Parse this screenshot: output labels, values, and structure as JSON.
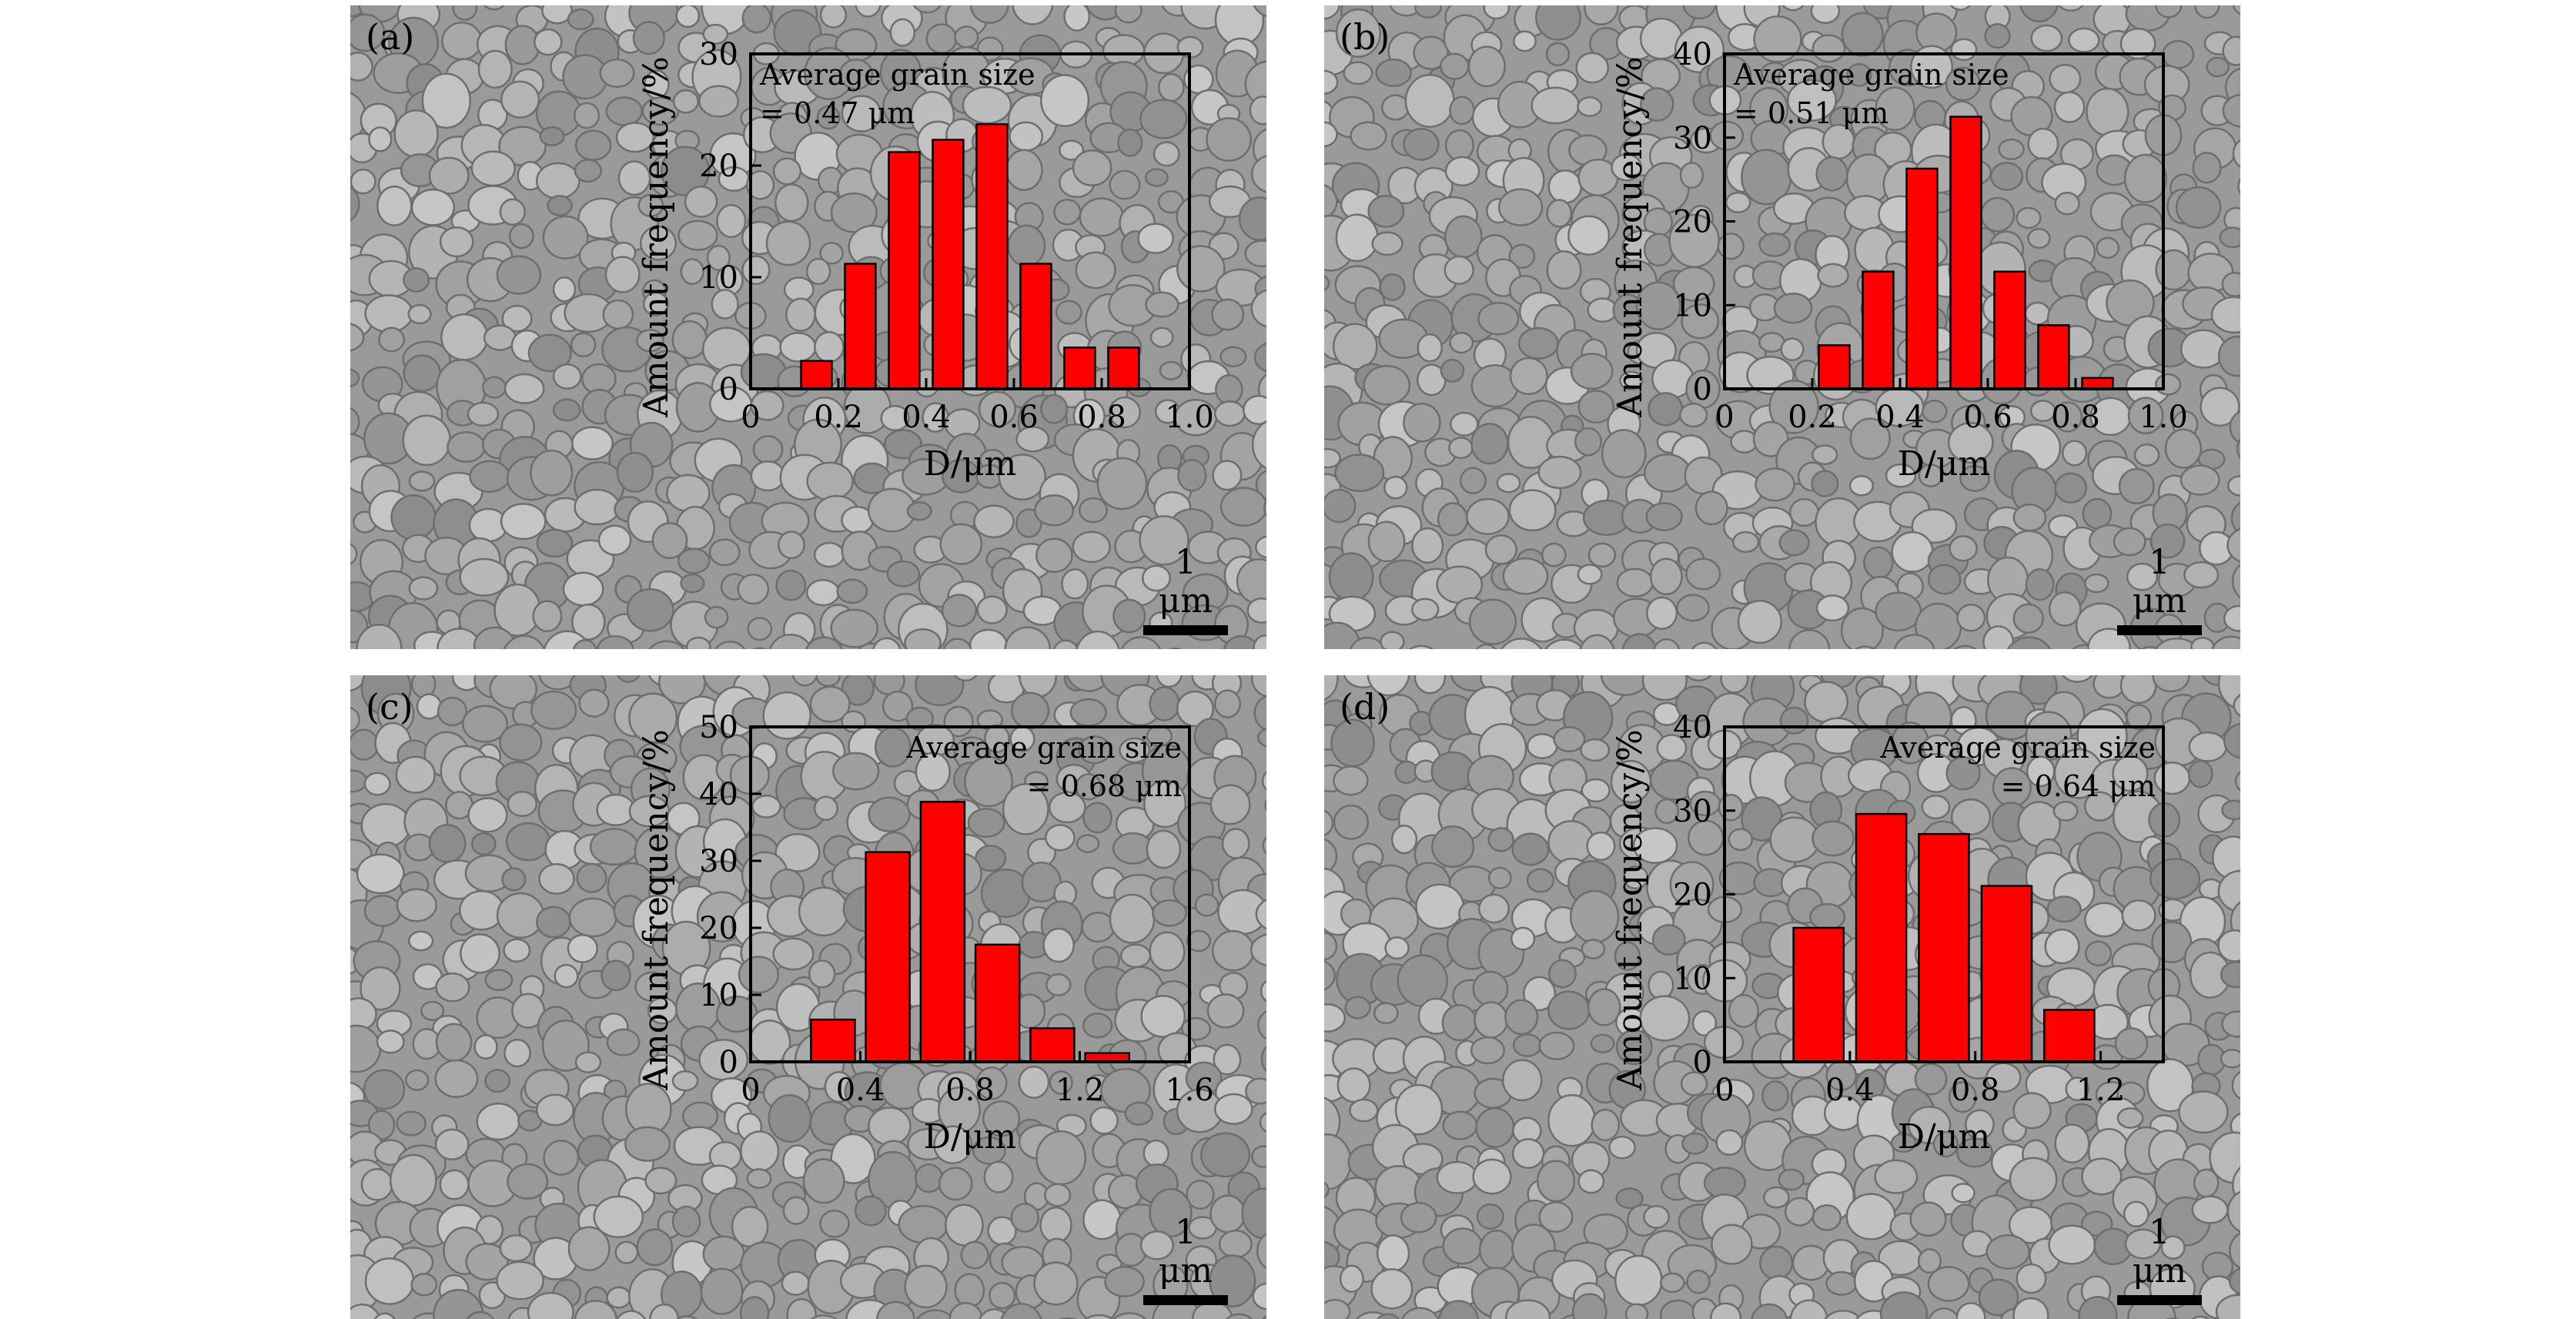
{
  "colors": {
    "bar_fill": "#ff0000",
    "bar_stroke": "#000000",
    "axis": "#000000",
    "micrograph": "#9a9a9a"
  },
  "panels": [
    {
      "tag": "(a)",
      "scale_label": "1 μm"
    },
    {
      "tag": "(b)",
      "scale_label": "1 μm"
    },
    {
      "tag": "(c)",
      "scale_label": "1 μm"
    },
    {
      "tag": "(d)",
      "scale_label": "1 μm"
    }
  ],
  "chart_data": [
    {
      "type": "bar",
      "ylabel": "Amount frequency/%",
      "xlabel": "D/μm",
      "annotation": [
        "Average grain size",
        "=  0.47 μm"
      ],
      "annotation_position": "top-left",
      "xlim": [
        0,
        1.0
      ],
      "ylim": [
        0,
        30
      ],
      "xticks": [
        0,
        0.2,
        0.4,
        0.6,
        0.8,
        1.0
      ],
      "xtick_labels": [
        "0",
        "0.2",
        "0.4",
        "0.6",
        "0.8",
        "1.0"
      ],
      "yticks": [
        0,
        10,
        20,
        30
      ],
      "bar_width": 0.07,
      "x": [
        0.15,
        0.25,
        0.35,
        0.45,
        0.55,
        0.65,
        0.75,
        0.85
      ],
      "values": [
        2.5,
        11.2,
        21.2,
        22.3,
        23.7,
        11.2,
        3.7,
        3.7
      ]
    },
    {
      "type": "bar",
      "ylabel": "Amount frequency/%",
      "xlabel": "D/μm",
      "annotation": [
        "Average grain size",
        "=  0.51 μm"
      ],
      "annotation_position": "top-left",
      "xlim": [
        0,
        1.0
      ],
      "ylim": [
        0,
        40
      ],
      "xticks": [
        0,
        0.2,
        0.4,
        0.6,
        0.8,
        1.0
      ],
      "xtick_labels": [
        "0",
        "0.2",
        "0.4",
        "0.6",
        "0.8",
        "1.0"
      ],
      "yticks": [
        0,
        10,
        20,
        30,
        40
      ],
      "bar_width": 0.07,
      "x": [
        0.25,
        0.35,
        0.45,
        0.55,
        0.65,
        0.75,
        0.85
      ],
      "values": [
        5.2,
        14.0,
        26.3,
        32.5,
        14.0,
        7.6,
        1.3
      ]
    },
    {
      "type": "bar",
      "ylabel": "Amount frequency/%",
      "xlabel": "D/μm",
      "annotation": [
        "Average grain size",
        "=  0.68 μm"
      ],
      "annotation_position": "top-right",
      "xlim": [
        0,
        1.6
      ],
      "ylim": [
        0,
        50
      ],
      "xticks": [
        0,
        0.4,
        0.8,
        1.2,
        1.6
      ],
      "xtick_labels": [
        "0",
        "0.4",
        "0.8",
        "1.2",
        "1.6"
      ],
      "yticks": [
        0,
        10,
        20,
        30,
        40,
        50
      ],
      "bar_width": 0.16,
      "x": [
        0.3,
        0.5,
        0.7,
        0.9,
        1.1,
        1.3
      ],
      "values": [
        6.3,
        31.3,
        38.8,
        17.5,
        5.0,
        1.3
      ]
    },
    {
      "type": "bar",
      "ylabel": "Amount frequency/%",
      "xlabel": "D/μm",
      "annotation": [
        "Average grain size",
        "=  0.64 μm"
      ],
      "annotation_position": "top-right",
      "xlim": [
        0,
        1.4
      ],
      "ylim": [
        0,
        40
      ],
      "xticks": [
        0,
        0.4,
        0.8,
        1.2
      ],
      "xtick_labels": [
        "0",
        "0.4",
        "0.8",
        "1.2"
      ],
      "yticks": [
        0,
        10,
        20,
        30,
        40
      ],
      "bar_width": 0.16,
      "x": [
        0.3,
        0.5,
        0.7,
        0.9,
        1.1
      ],
      "values": [
        16.0,
        29.6,
        27.2,
        21.0,
        6.2
      ]
    }
  ]
}
